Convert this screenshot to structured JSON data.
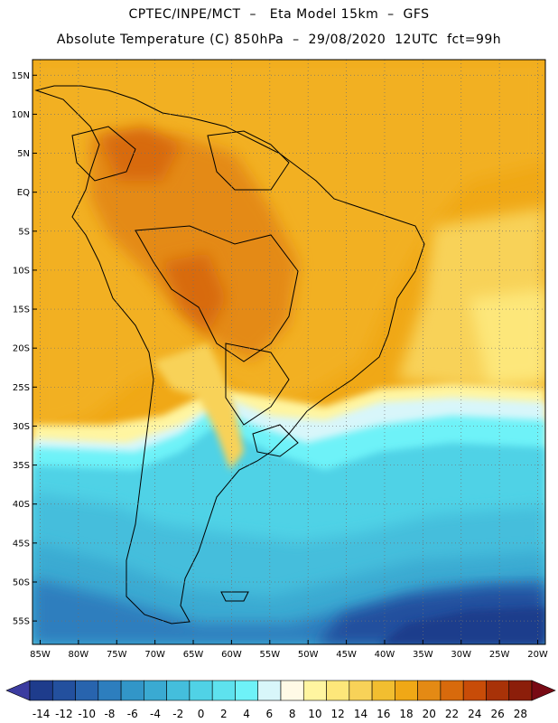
{
  "title": {
    "line1": "CPTEC/INPE/MCT  –   Eta Model 15km  –  GFS",
    "line2": "Absolute Temperature (C) 850hPa  –  29/08/2020  12UTC  fct=99h"
  },
  "map": {
    "region": "South America",
    "lon_range": [
      -86,
      -19
    ],
    "lat_range": [
      -58,
      17
    ],
    "lat_ticks": [
      {
        "value": 15,
        "label": "15N"
      },
      {
        "value": 10,
        "label": "10N"
      },
      {
        "value": 5,
        "label": "5N"
      },
      {
        "value": 0,
        "label": "EQ"
      },
      {
        "value": -5,
        "label": "5S"
      },
      {
        "value": -10,
        "label": "10S"
      },
      {
        "value": -15,
        "label": "15S"
      },
      {
        "value": -20,
        "label": "20S"
      },
      {
        "value": -25,
        "label": "25S"
      },
      {
        "value": -30,
        "label": "30S"
      },
      {
        "value": -35,
        "label": "35S"
      },
      {
        "value": -40,
        "label": "40S"
      },
      {
        "value": -45,
        "label": "45S"
      },
      {
        "value": -50,
        "label": "50S"
      },
      {
        "value": -55,
        "label": "55S"
      }
    ],
    "lon_ticks": [
      {
        "value": -85,
        "label": "85W"
      },
      {
        "value": -80,
        "label": "80W"
      },
      {
        "value": -75,
        "label": "75W"
      },
      {
        "value": -70,
        "label": "70W"
      },
      {
        "value": -65,
        "label": "65W"
      },
      {
        "value": -60,
        "label": "60W"
      },
      {
        "value": -55,
        "label": "55W"
      },
      {
        "value": -50,
        "label": "50W"
      },
      {
        "value": -45,
        "label": "45W"
      },
      {
        "value": -40,
        "label": "40W"
      },
      {
        "value": -35,
        "label": "35W"
      },
      {
        "value": -30,
        "label": "30W"
      },
      {
        "value": -25,
        "label": "25W"
      },
      {
        "value": -20,
        "label": "20W"
      }
    ]
  },
  "colorbar": {
    "labels": [
      "-14",
      "-12",
      "-10",
      "-8",
      "-6",
      "-4",
      "-2",
      "0",
      "2",
      "4",
      "6",
      "8",
      "10",
      "12",
      "14",
      "16",
      "18",
      "20",
      "22",
      "24",
      "26",
      "28"
    ],
    "colors": [
      "#1e3c8c",
      "#23509e",
      "#2864ae",
      "#2d7ebe",
      "#3296c8",
      "#3aaad2",
      "#44bedc",
      "#50d2e6",
      "#5ee2ee",
      "#6ef2f8",
      "#d8f6fa",
      "#fffae6",
      "#fff5a0",
      "#fde77a",
      "#f8d258",
      "#f2be30",
      "#f0a816",
      "#e48a14",
      "#d86a0c",
      "#c84c08",
      "#a83208",
      "#8c1e0a"
    ],
    "low_arrow_color": "#3c3ca0",
    "high_arrow_color": "#780a14"
  }
}
